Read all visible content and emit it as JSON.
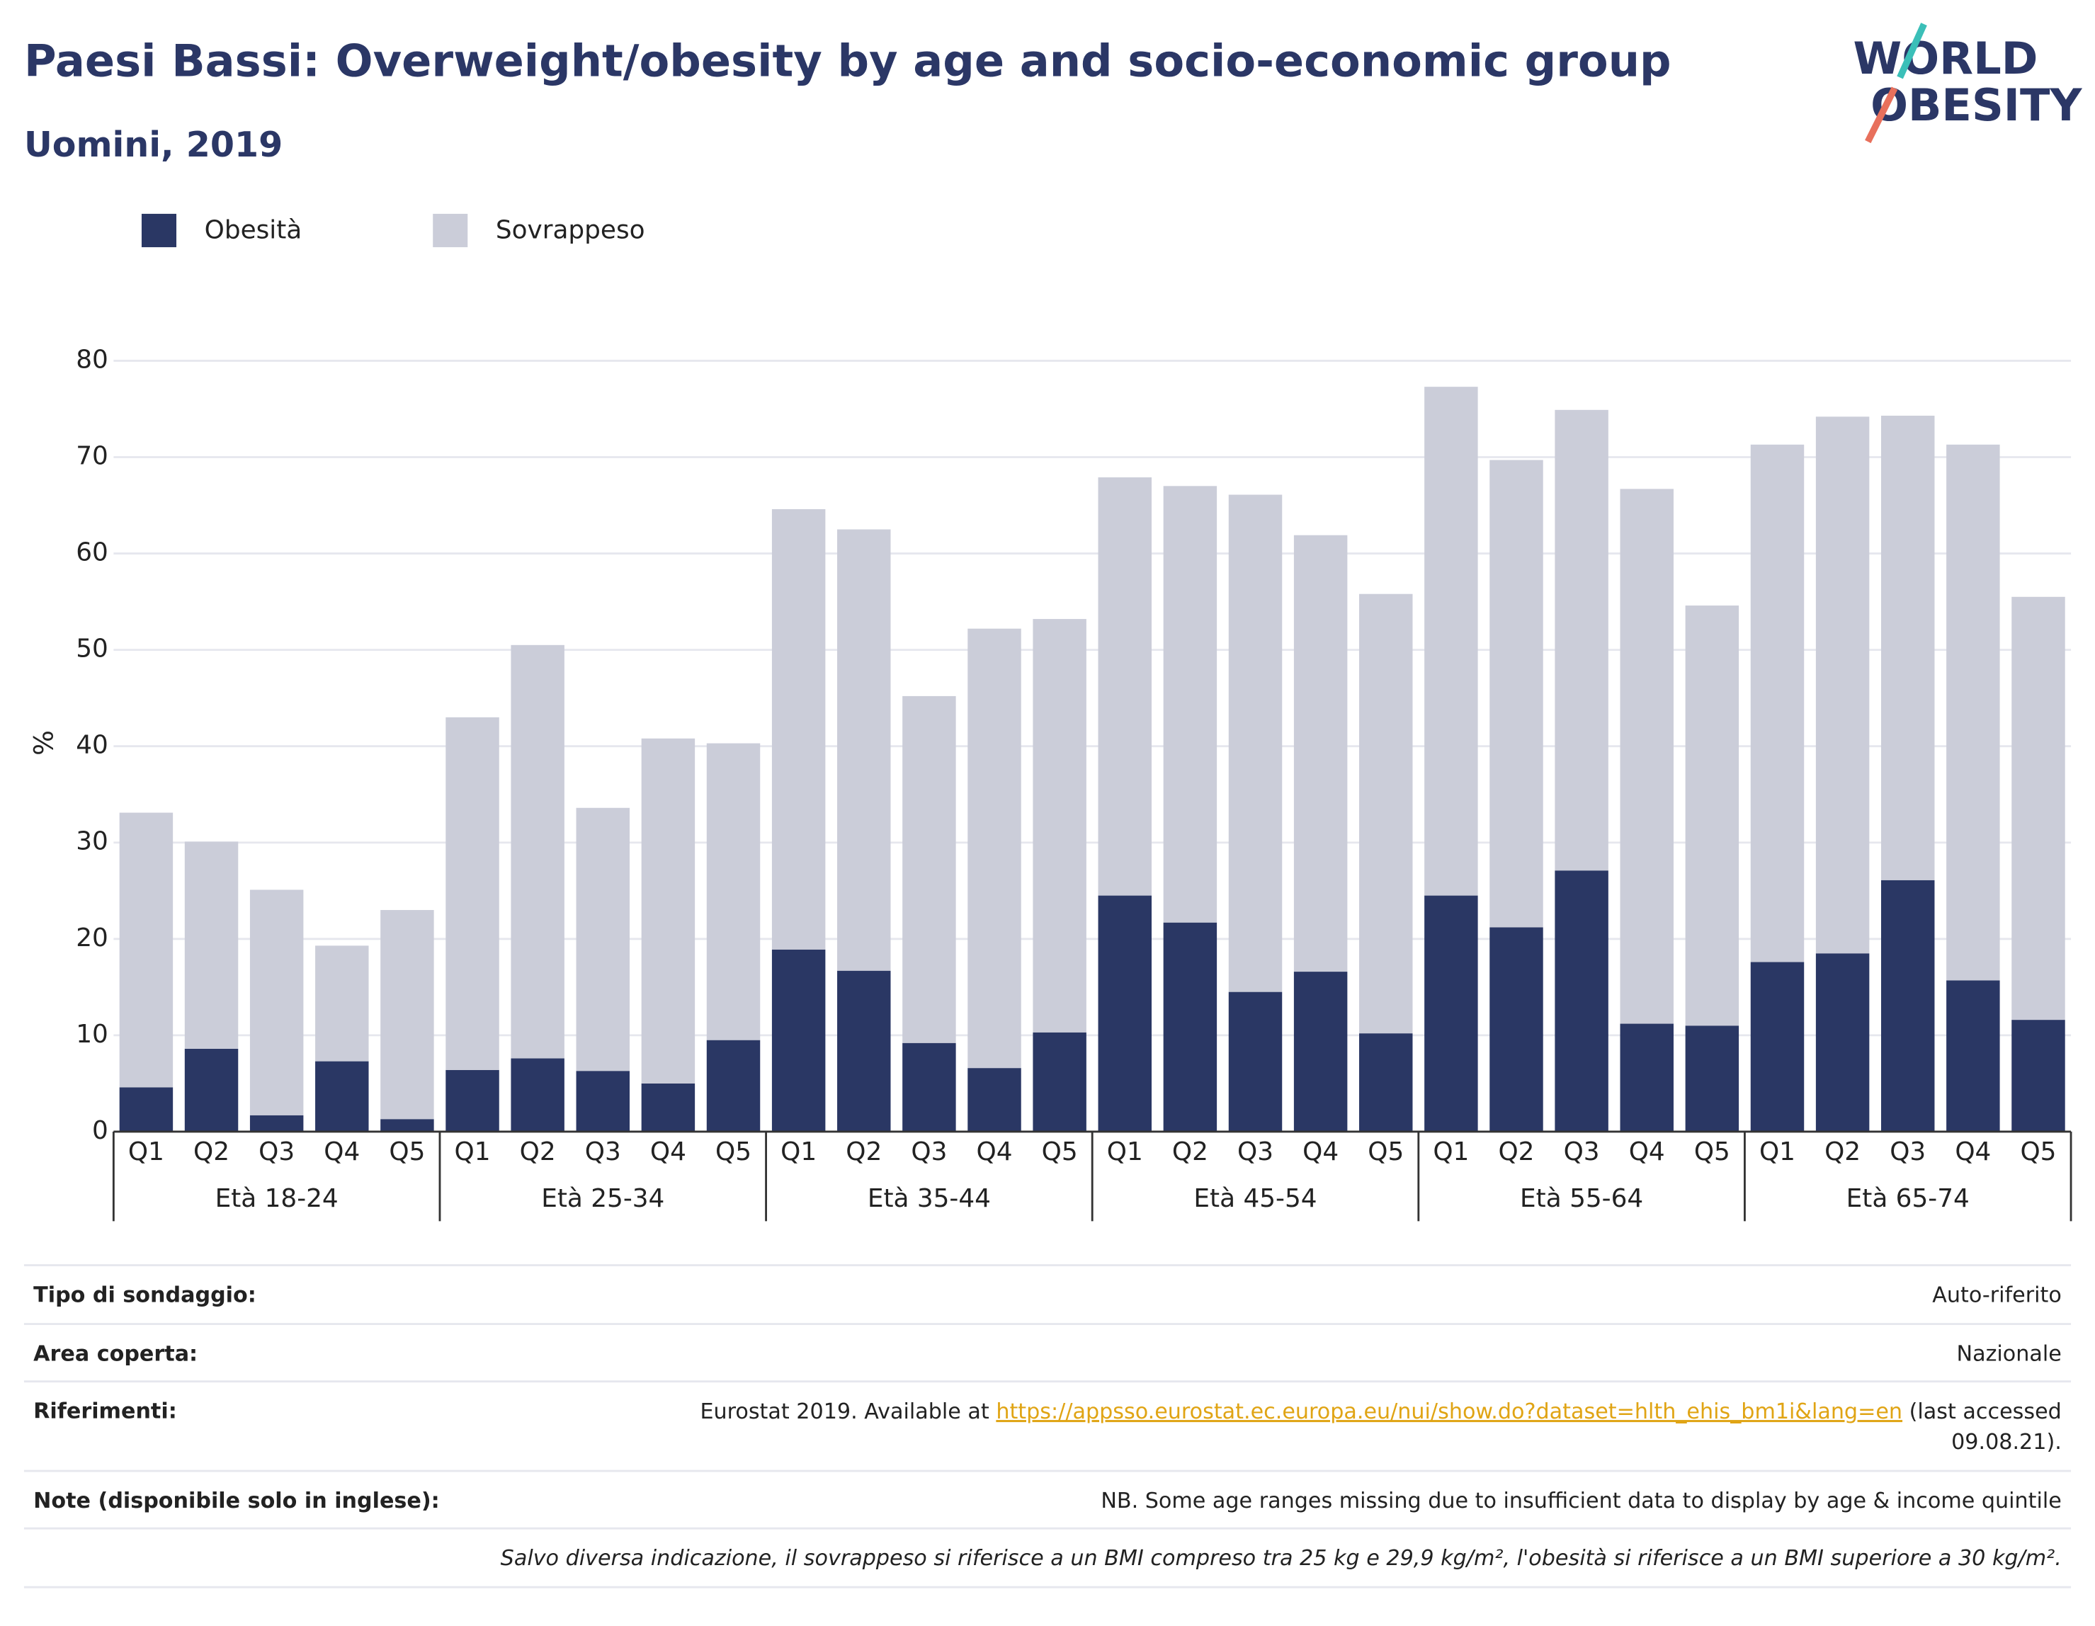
{
  "chart_data": {
    "type": "stacked_bar",
    "title": "Paesi Bassi: Overweight/obesity by age and socio-economic group",
    "subtitle": "Uomini, 2019",
    "y_label": "%",
    "logo": [
      "WORLD",
      "OBESITY"
    ],
    "groups": [
      "Età 18-24",
      "Età 25-34",
      "Età 35-44",
      "Età 45-54",
      "Età 55-64",
      "Età 65-74"
    ],
    "categories": [
      "Q1",
      "Q2",
      "Q3",
      "Q4",
      "Q5",
      "Q1",
      "Q2",
      "Q3",
      "Q4",
      "Q5",
      "Q1",
      "Q2",
      "Q3",
      "Q4",
      "Q5",
      "Q1",
      "Q2",
      "Q3",
      "Q4",
      "Q5",
      "Q1",
      "Q2",
      "Q3",
      "Q4",
      "Q5",
      "Q1",
      "Q2",
      "Q3",
      "Q4",
      "Q5"
    ],
    "series": [
      {
        "name": "Obesità",
        "color": "#2a3764",
        "values": [
          4.6,
          8.6,
          1.7,
          7.3,
          1.3,
          6.4,
          7.6,
          6.3,
          5.0,
          9.5,
          18.9,
          16.7,
          9.2,
          6.6,
          10.3,
          24.5,
          21.7,
          14.5,
          16.6,
          10.2,
          24.5,
          21.2,
          27.1,
          11.2,
          11.0,
          17.6,
          18.5,
          26.1,
          15.7,
          11.6
        ]
      },
      {
        "name": "Sovrappeso",
        "color": "#cbcdd9",
        "values": [
          28.5,
          21.5,
          23.4,
          12.0,
          21.7,
          36.6,
          42.9,
          27.3,
          35.8,
          30.8,
          45.7,
          45.8,
          36.0,
          45.6,
          42.9,
          43.4,
          45.3,
          51.6,
          45.3,
          45.6,
          52.8,
          48.5,
          47.8,
          55.5,
          43.6,
          53.7,
          55.7,
          48.2,
          55.6,
          43.9
        ]
      }
    ],
    "ylim": [
      0,
      80
    ],
    "yticks": [
      0,
      10,
      20,
      30,
      40,
      50,
      60,
      70,
      80
    ],
    "grid": true
  },
  "footer": {
    "rows": [
      {
        "label": "Tipo di sondaggio:",
        "value": "Auto-riferito"
      },
      {
        "label": "Area coperta:",
        "value": "Nazionale"
      },
      {
        "label": "Riferimenti:",
        "value_before": "Eurostat 2019. Available at ",
        "link": "https://appsso.eurostat.ec.europa.eu/nui/show.do?dataset=hlth_ehis_bm1i&lang=en",
        "value_after": " (last accessed",
        "value_line2": "09.08.21)."
      },
      {
        "label": "Note (disponibile solo in inglese):",
        "value": "NB. Some age ranges missing due to insufficient data to display by age & income quintile"
      }
    ],
    "note": "Salvo diversa indicazione, il sovrappeso si riferisce a un BMI compreso tra 25 kg e 29,9 kg/m², l'obesità si riferisce a un BMI superiore a 30 kg/m²."
  }
}
